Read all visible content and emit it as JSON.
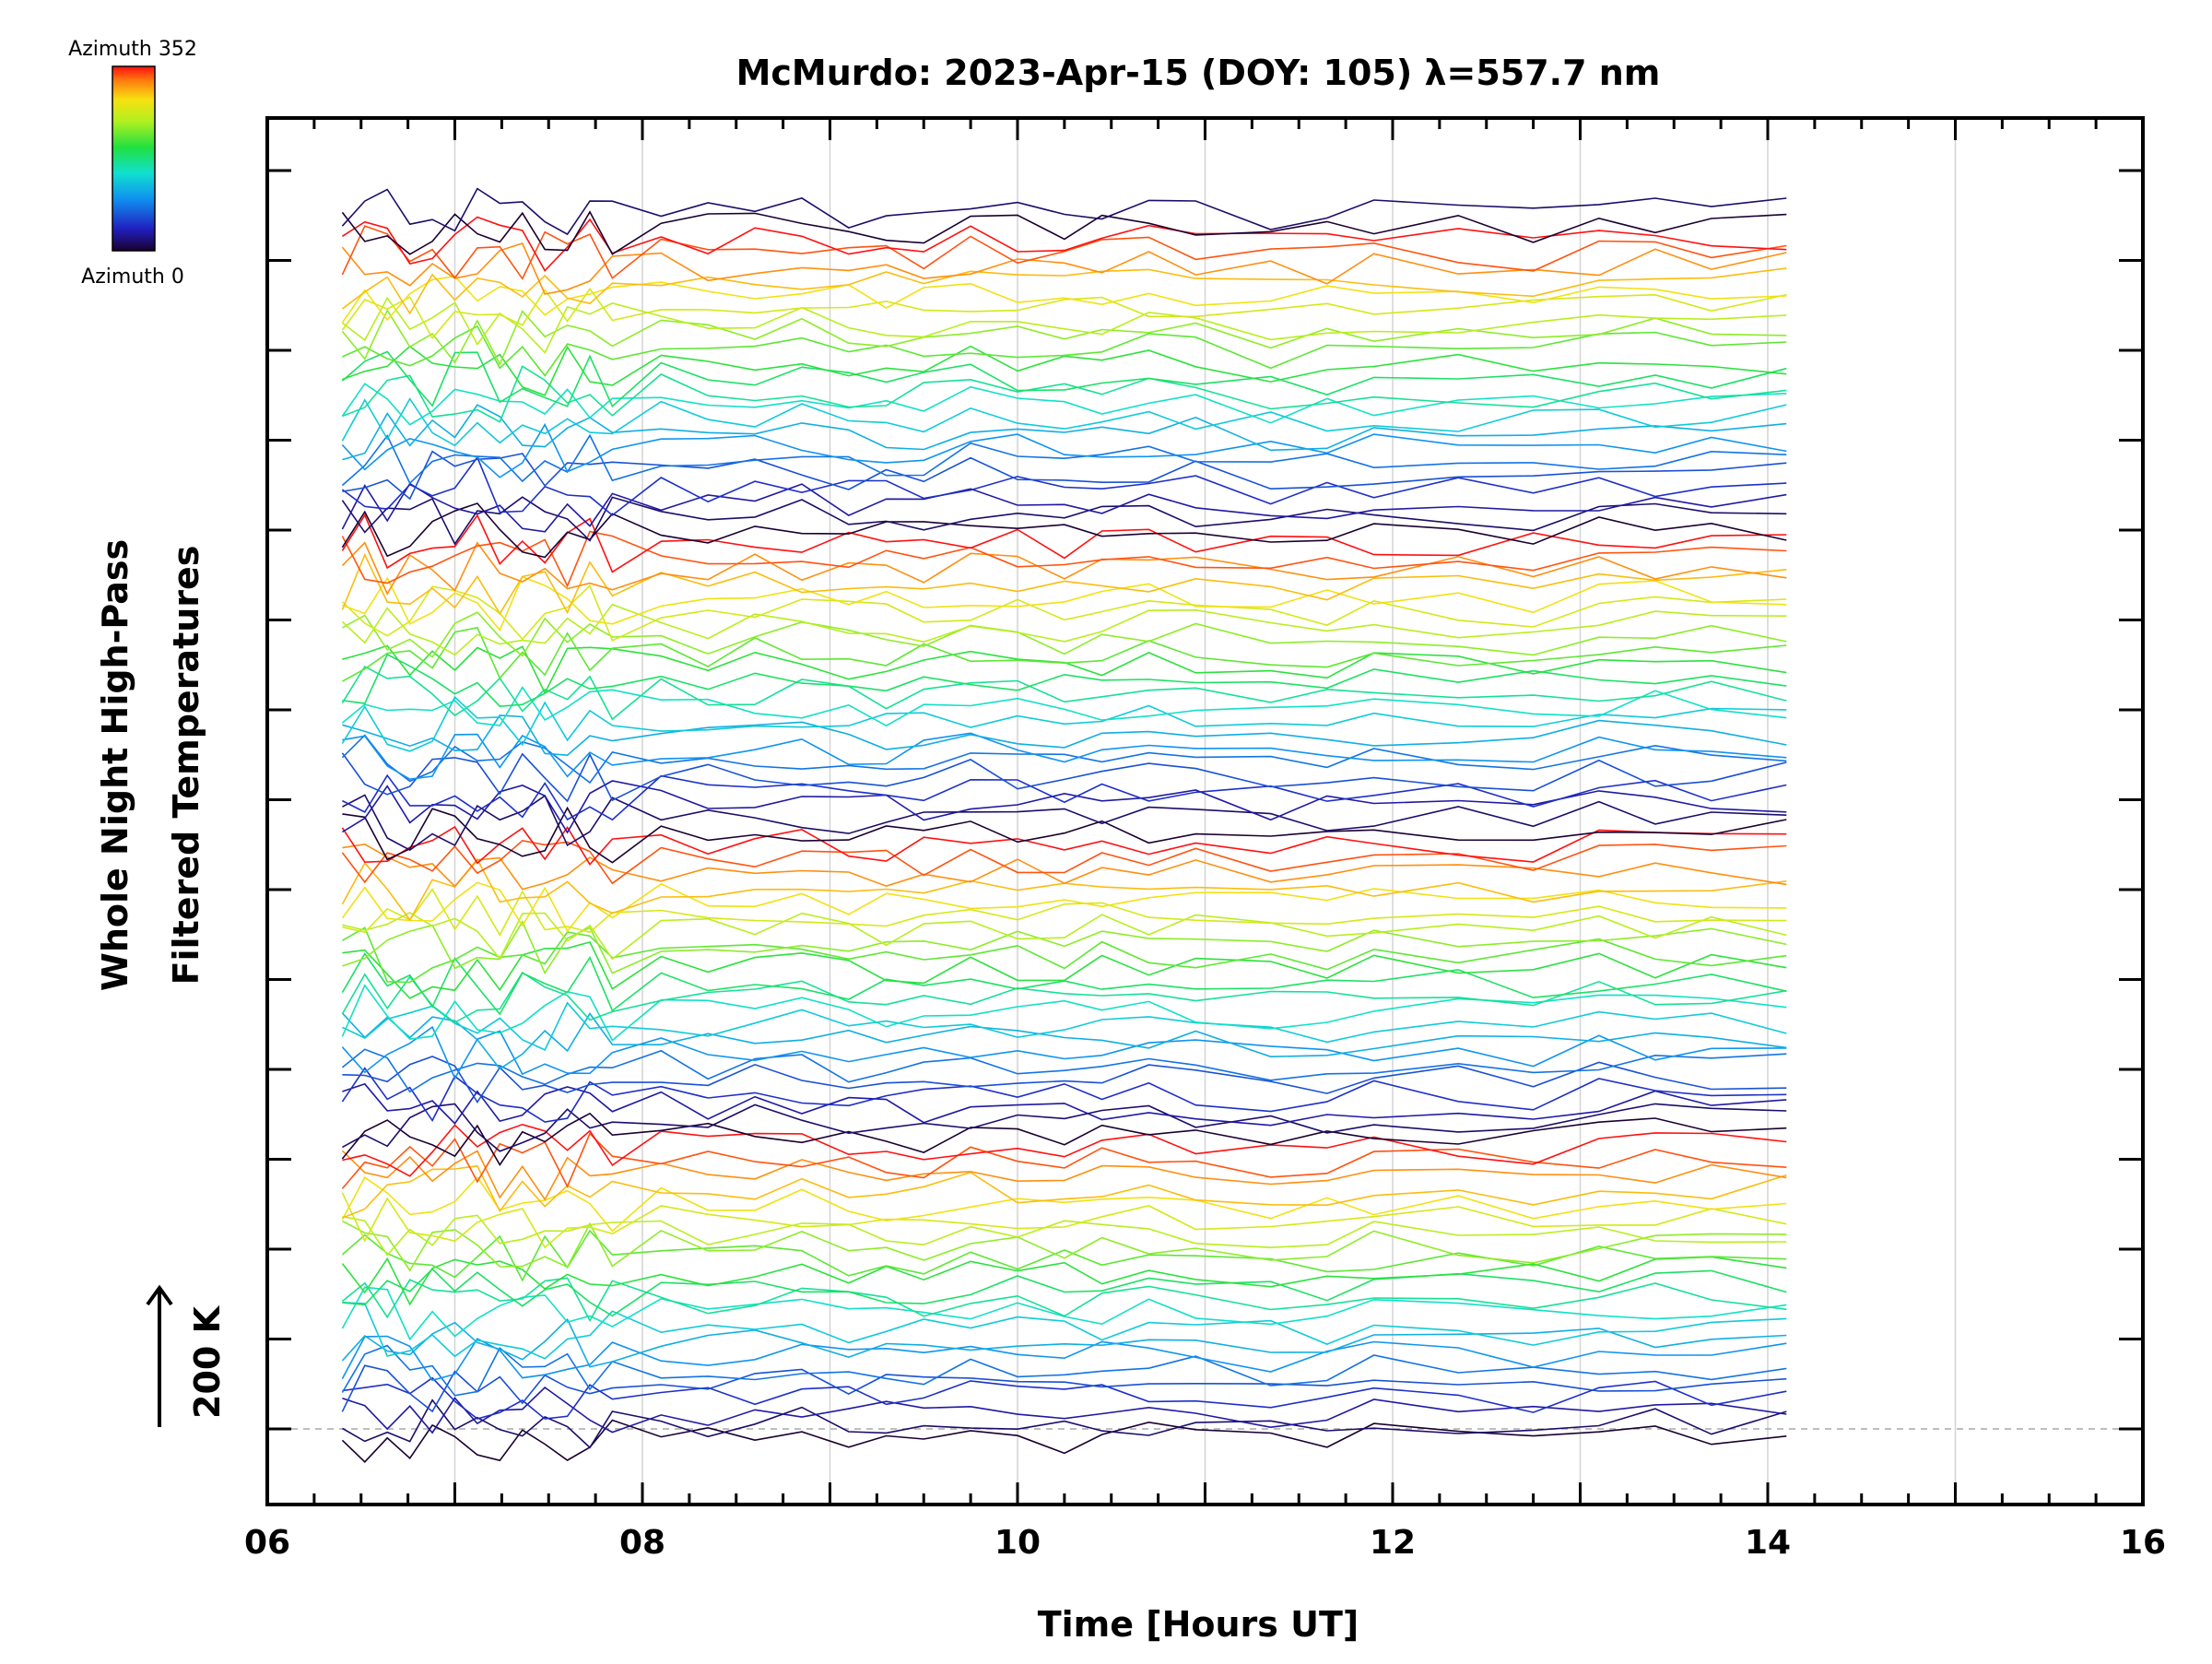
{
  "chart_data": {
    "type": "line",
    "title": "McMurdo: 2023-Apr-15 (DOY: 105) λ=557.7 nm",
    "xlabel": "Time [Hours UT]",
    "ylabel_lines": [
      "Whole Night High-Pass",
      "Filtered Temperatures"
    ],
    "xlim": [
      6,
      16
    ],
    "x_ticks": [
      "06",
      "08",
      "10",
      "12",
      "14",
      "16"
    ],
    "x_tick_values": [
      6,
      8,
      10,
      12,
      14,
      16
    ],
    "scale_marker": "200 K",
    "colorbar": {
      "top_label": "Azimuth 352",
      "bottom_label": "Azimuth 0",
      "min": 0,
      "max": 352,
      "colormap": "rainbow"
    },
    "grid": true,
    "legend": "none",
    "series_offset_count": 90,
    "time_range": [
      6.4,
      14.1
    ]
  }
}
